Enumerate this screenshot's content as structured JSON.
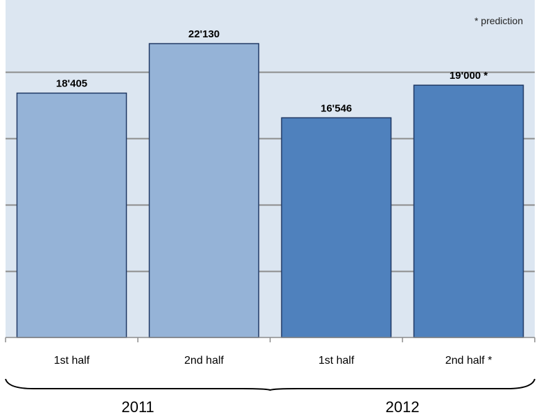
{
  "chart_data": {
    "type": "bar",
    "note": "* prediction",
    "groups": [
      {
        "label": "2011",
        "categories": [
          "1st half",
          "2nd half"
        ]
      },
      {
        "label": "2012",
        "categories": [
          "1st half",
          "2nd half *"
        ]
      }
    ],
    "categories": [
      "1st half",
      "2nd half",
      "1st half",
      "2nd half *"
    ],
    "values": [
      18405,
      22130,
      16546,
      19000
    ],
    "value_labels": [
      "18'405",
      "22'130",
      "16'546",
      "19'000 *"
    ],
    "ylim": [
      0,
      25000
    ],
    "grid": true,
    "y_tick_labels_shown": false,
    "colors": {
      "plot_background": "#dce6f1",
      "bar_2011": "#95b3d7",
      "bar_2012": "#4f81bd",
      "bar_border": "#1f3864",
      "gridline": "#8c8c8c",
      "axis": "#8c8c8c",
      "text": "#000000"
    }
  }
}
